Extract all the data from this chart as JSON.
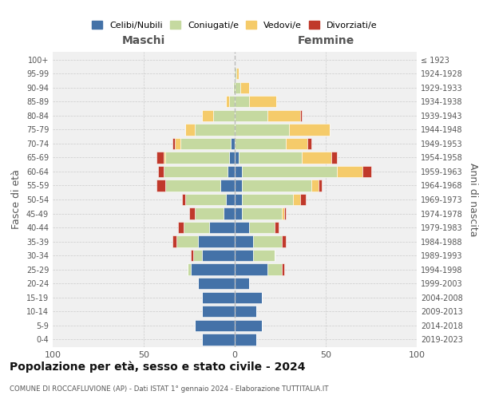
{
  "age_groups": [
    "0-4",
    "5-9",
    "10-14",
    "15-19",
    "20-24",
    "25-29",
    "30-34",
    "35-39",
    "40-44",
    "45-49",
    "50-54",
    "55-59",
    "60-64",
    "65-69",
    "70-74",
    "75-79",
    "80-84",
    "85-89",
    "90-94",
    "95-99",
    "100+"
  ],
  "birth_years": [
    "2019-2023",
    "2014-2018",
    "2009-2013",
    "2004-2008",
    "1999-2003",
    "1994-1998",
    "1989-1993",
    "1984-1988",
    "1979-1983",
    "1974-1978",
    "1969-1973",
    "1964-1968",
    "1959-1963",
    "1954-1958",
    "1949-1953",
    "1944-1948",
    "1939-1943",
    "1934-1938",
    "1929-1933",
    "1924-1928",
    "≤ 1923"
  ],
  "colors": {
    "celibi": "#4472a8",
    "coniugati": "#c5d9a0",
    "vedovi": "#f5cb6a",
    "divorziati": "#c0392b"
  },
  "maschi": {
    "celibi": [
      18,
      22,
      18,
      18,
      20,
      24,
      18,
      20,
      14,
      6,
      5,
      8,
      4,
      3,
      2,
      0,
      0,
      0,
      0,
      0,
      0
    ],
    "coniugati": [
      0,
      0,
      0,
      0,
      0,
      2,
      5,
      12,
      14,
      16,
      22,
      30,
      35,
      35,
      28,
      22,
      12,
      3,
      1,
      0,
      0
    ],
    "vedovi": [
      0,
      0,
      0,
      0,
      0,
      0,
      0,
      0,
      0,
      0,
      0,
      0,
      0,
      1,
      3,
      5,
      6,
      2,
      0,
      0,
      0
    ],
    "divorziati": [
      0,
      0,
      0,
      0,
      0,
      0,
      1,
      2,
      3,
      3,
      2,
      5,
      3,
      4,
      1,
      0,
      0,
      0,
      0,
      0,
      0
    ]
  },
  "femmine": {
    "celibi": [
      12,
      15,
      12,
      15,
      8,
      18,
      10,
      10,
      8,
      4,
      4,
      4,
      4,
      2,
      0,
      0,
      0,
      0,
      0,
      0,
      0
    ],
    "coniugati": [
      0,
      0,
      0,
      0,
      0,
      8,
      12,
      16,
      14,
      22,
      28,
      38,
      52,
      35,
      28,
      30,
      18,
      8,
      3,
      1,
      0
    ],
    "vedovi": [
      0,
      0,
      0,
      0,
      0,
      0,
      0,
      0,
      0,
      1,
      4,
      4,
      14,
      16,
      12,
      22,
      18,
      15,
      5,
      1,
      0
    ],
    "divorziati": [
      0,
      0,
      0,
      0,
      0,
      1,
      0,
      2,
      2,
      1,
      3,
      2,
      5,
      3,
      2,
      0,
      1,
      0,
      0,
      0,
      0
    ]
  },
  "xlim": 100,
  "title": "Popolazione per età, sesso e stato civile - 2024",
  "subtitle": "COMUNE DI ROCCAFLUVIONE (AP) - Dati ISTAT 1° gennaio 2024 - Elaborazione TUTTITALIA.IT",
  "ylabel_left": "Fasce di età",
  "ylabel_right": "Anni di nascita",
  "xlabel_left": "Maschi",
  "xlabel_right": "Femmine",
  "legend_labels": [
    "Celibi/Nubili",
    "Coniugati/e",
    "Vedovi/e",
    "Divorziati/e"
  ],
  "background_color": "#f0f0f0",
  "bar_edge_color": "white"
}
